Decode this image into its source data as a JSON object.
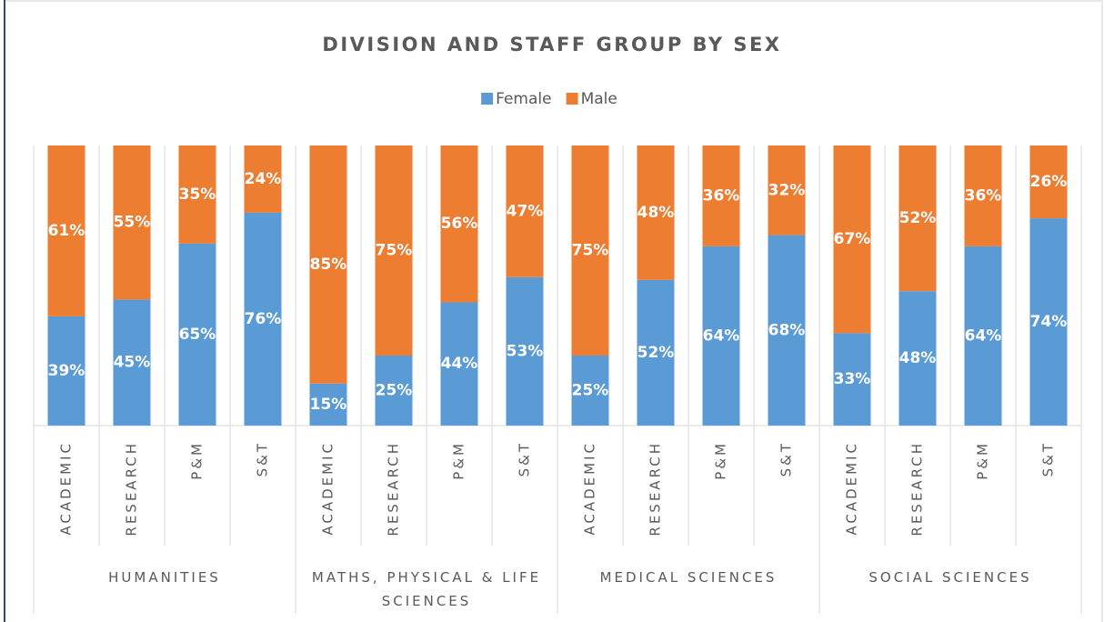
{
  "chart_data": {
    "type": "stacked_bar",
    "title": "DIVISION AND STAFF GROUP BY SEX",
    "categories": [
      "ACADEMIC",
      "RESEARCH",
      "P&M",
      "S&T",
      "ACADEMIC",
      "RESEARCH",
      "P&M",
      "S&T",
      "ACADEMIC",
      "RESEARCH",
      "P&M",
      "S&T",
      "ACADEMIC",
      "RESEARCH",
      "P&M",
      "S&T"
    ],
    "groups": [
      "HUMANITIES",
      "MATHS, PHYSICAL & LIFE SCIENCES",
      "MEDICAL SCIENCES",
      "SOCIAL SCIENCES"
    ],
    "series": [
      {
        "name": "Female",
        "color": "#5b9bd5",
        "values": [
          39,
          45,
          65,
          76,
          15,
          25,
          44,
          53,
          25,
          52,
          64,
          68,
          33,
          48,
          64,
          74
        ],
        "value_labels": [
          "39%",
          "45%",
          "65%",
          "76%",
          "15%",
          "25%",
          "44%",
          "53%",
          "25%",
          "52%",
          "64%",
          "68%",
          "33%",
          "48%",
          "64%",
          "74%"
        ]
      },
      {
        "name": "Male",
        "color": "#ed7d31",
        "values": [
          61,
          55,
          35,
          24,
          85,
          75,
          56,
          47,
          75,
          48,
          36,
          32,
          67,
          52,
          36,
          26
        ],
        "value_labels": [
          "61%",
          "55%",
          "35%",
          "24%",
          "85%",
          "75%",
          "56%",
          "47%",
          "75%",
          "48%",
          "36%",
          "32%",
          "67%",
          "52%",
          "36%",
          "26%"
        ]
      }
    ]
  }
}
